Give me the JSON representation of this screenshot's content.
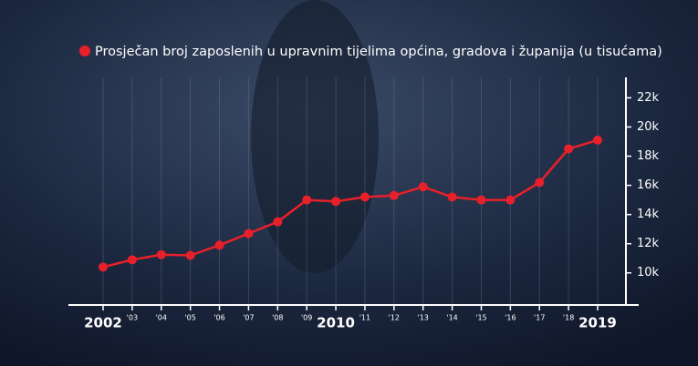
{
  "chart_data": {
    "type": "line",
    "categories": [
      "2002",
      "'03",
      "'04",
      "'05",
      "'06",
      "'07",
      "'08",
      "'09",
      "2010",
      "'11",
      "'12",
      "'13",
      "'14",
      "'15",
      "'16",
      "'17",
      "'18",
      "2019"
    ],
    "series": [
      {
        "name": "Prosječan broj zaposlenih u upravnim tijelima općina, gradova i županija (u tisućama)",
        "color": "#e8202a",
        "values": [
          10.4,
          10.9,
          11.25,
          11.2,
          11.9,
          12.7,
          13.5,
          15.0,
          14.9,
          15.2,
          15.3,
          15.9,
          15.2,
          15.0,
          15.0,
          16.2,
          18.5,
          19.1
        ]
      }
    ],
    "ylim": [
      7.8,
      23.4
    ],
    "yticks": [
      {
        "value": 10,
        "label": "10k"
      },
      {
        "value": 12,
        "label": "12k"
      },
      {
        "value": 14,
        "label": "14k"
      },
      {
        "value": 16,
        "label": "16k"
      },
      {
        "value": 18,
        "label": "18k"
      },
      {
        "value": 20,
        "label": "20k"
      },
      {
        "value": 22,
        "label": "22k"
      }
    ],
    "grid": true
  }
}
